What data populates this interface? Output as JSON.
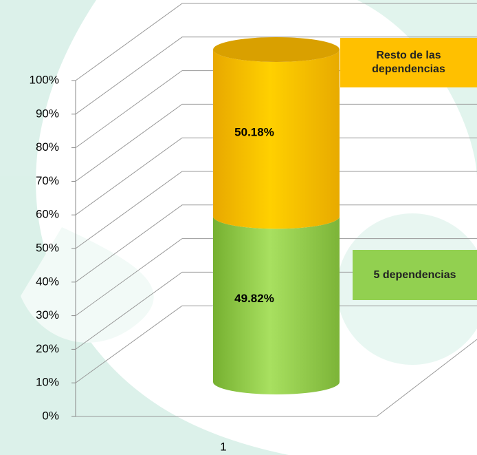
{
  "chart_data": {
    "type": "bar",
    "stacked": true,
    "three_d": true,
    "categories": [
      "1"
    ],
    "series": [
      {
        "name": "5 dependencias",
        "color": "#92d050",
        "values": [
          49.82
        ],
        "value_labels": [
          "49.82%"
        ]
      },
      {
        "name": "Resto de las dependencias",
        "color": "#ffc000",
        "values": [
          50.18
        ],
        "value_labels": [
          "50.18%"
        ]
      }
    ],
    "ylim": [
      0,
      100
    ],
    "yticks": [
      {
        "value": 0,
        "label": "0%"
      },
      {
        "value": 10,
        "label": "10%"
      },
      {
        "value": 20,
        "label": "20%"
      },
      {
        "value": 30,
        "label": "30%"
      },
      {
        "value": 40,
        "label": "40%"
      },
      {
        "value": 50,
        "label": "50%"
      },
      {
        "value": 60,
        "label": "60%"
      },
      {
        "value": 70,
        "label": "70%"
      },
      {
        "value": 80,
        "label": "80%"
      },
      {
        "value": 90,
        "label": "90%"
      },
      {
        "value": 100,
        "label": "100%"
      }
    ],
    "grid": true,
    "legend": "right"
  }
}
